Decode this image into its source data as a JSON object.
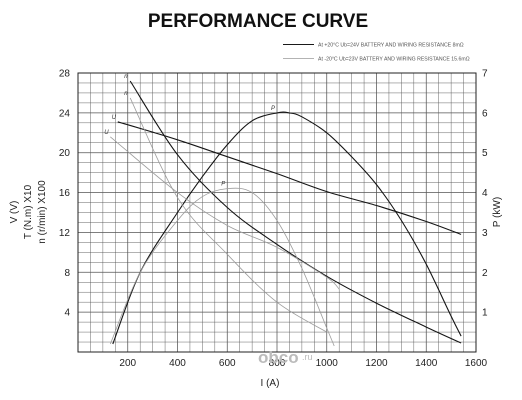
{
  "chart_data": {
    "type": "line",
    "title": "PERFORMANCE CURVE",
    "xlabel": "I (A)",
    "ylabel_left": [
      "V (V)",
      "T (N.m) X10",
      "n (r/min) X100"
    ],
    "ylabel_right": "P (kW)",
    "xlim": [
      0,
      1600
    ],
    "ylim_left": [
      0,
      28
    ],
    "ylim_right": [
      0,
      7
    ],
    "x_ticks": [
      "200",
      "400",
      "600",
      "800",
      "1000",
      "1200",
      "1400",
      "1600"
    ],
    "y_left_ticks": [
      "4",
      "8",
      "12",
      "16",
      "20",
      "24",
      "28"
    ],
    "y_right_ticks": [
      "1",
      "2",
      "3",
      "4",
      "5",
      "6",
      "7"
    ],
    "grid": true,
    "legend_position": "top-right",
    "legend": [
      {
        "text": "At +20°C Ub=24V BATTERY AND WIRING RESISTANCE 8mΩ",
        "style": "solid"
      },
      {
        "text": "At -20°C Ub=23V BATTERY AND WIRING RESISTANCE 15.6mΩ",
        "style": "light"
      }
    ],
    "series": [
      {
        "name": "n",
        "group": "+20°C",
        "axis": "left",
        "style": "solid",
        "x": [
          210,
          400,
          600,
          800,
          1000,
          1200,
          1400,
          1540
        ],
        "y": [
          27.2,
          19.8,
          14.5,
          10.8,
          7.6,
          4.9,
          2.5,
          0.9
        ]
      },
      {
        "name": "U",
        "group": "+20°C",
        "axis": "left",
        "style": "solid",
        "x": [
          160,
          400,
          600,
          800,
          1000,
          1200,
          1400,
          1540
        ],
        "y": [
          23.1,
          21.3,
          19.6,
          17.9,
          16.1,
          14.7,
          13.1,
          11.8
        ]
      },
      {
        "name": "P",
        "group": "+20°C",
        "axis": "right",
        "style": "solid",
        "x": [
          140,
          250,
          400,
          500,
          600,
          700,
          800,
          850,
          900,
          1000,
          1100,
          1200,
          1300,
          1400,
          1500,
          1540
        ],
        "y": [
          0.2,
          2.0,
          3.5,
          4.4,
          5.2,
          5.8,
          6.0,
          6.0,
          5.9,
          5.5,
          4.9,
          4.2,
          3.3,
          2.2,
          0.9,
          0.4
        ]
      },
      {
        "name": "n",
        "group": "-20°C",
        "axis": "left",
        "style": "light",
        "x": [
          210,
          400,
          600,
          800,
          1000
        ],
        "y": [
          25.5,
          15.5,
          9.8,
          5.0,
          2.0
        ]
      },
      {
        "name": "U",
        "group": "-20°C",
        "axis": "left",
        "style": "light",
        "x": [
          130,
          400,
          600,
          800,
          1000,
          1050
        ],
        "y": [
          21.6,
          16.0,
          12.7,
          10.5,
          7.5,
          6.3
        ]
      },
      {
        "name": "P",
        "group": "-20°C",
        "axis": "right",
        "style": "light",
        "x": [
          130,
          250,
          400,
          500,
          600,
          700,
          800,
          900,
          1000,
          1030
        ],
        "y": [
          0.2,
          2.0,
          3.3,
          3.9,
          4.1,
          4.0,
          3.3,
          2.1,
          0.6,
          0.15
        ]
      }
    ]
  },
  "watermark": {
    "brand": "obco",
    "suffix": ".ru"
  }
}
